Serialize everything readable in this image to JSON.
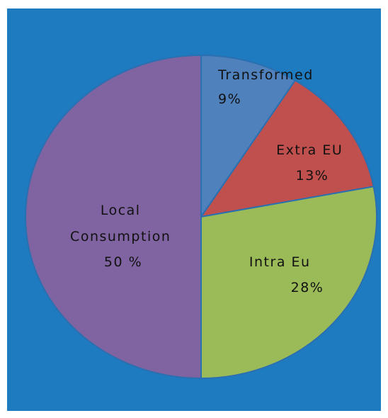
{
  "chart_data": {
    "type": "pie",
    "title": "",
    "slices": [
      {
        "label": "Transformed",
        "value": 9,
        "value_text": "9%",
        "color": "#4f81bd",
        "text_color": "#1a3d66"
      },
      {
        "label": "Extra EU",
        "value": 13,
        "value_text": "13%",
        "color": "#c0504d",
        "text_color": "#111111"
      },
      {
        "label": "Intra Eu",
        "value": 28,
        "value_text": "28%",
        "color": "#9bbb59",
        "text_color": "#111111"
      },
      {
        "label": "Local Consumption",
        "value": 50,
        "value_text": "50 %",
        "color": "#8064a2",
        "text_color": "#111111"
      }
    ],
    "background_color": "#1f7bc0",
    "legend": "none",
    "labels_inside": true
  }
}
